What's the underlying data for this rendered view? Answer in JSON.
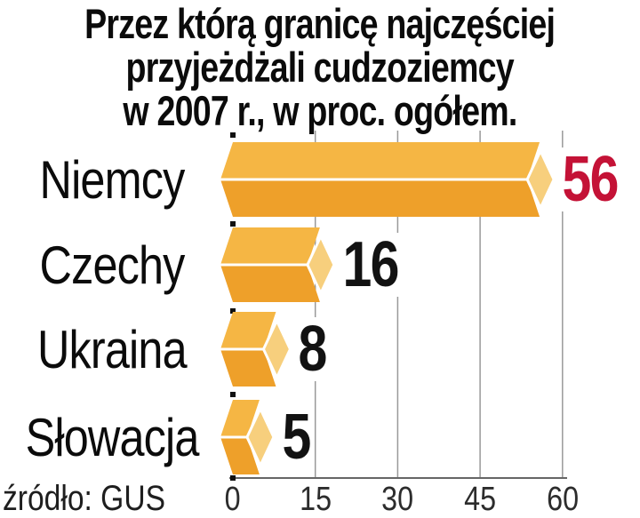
{
  "chart_data": {
    "type": "bar",
    "orientation": "horizontal",
    "title": "Przez którą granicę najczęściej przyjeżdżali cudzoziemcy w 2007 r., w proc. ogółem.",
    "title_lines": [
      "Przez którą granicę najczęściej",
      "przyjeżdżali cudzoziemcy",
      "w 2007 r., w proc. ogółem."
    ],
    "categories": [
      "Niemcy",
      "Czechy",
      "Ukraina",
      "Słowacja"
    ],
    "values": [
      56,
      16,
      8,
      5
    ],
    "value_labels": [
      "56",
      "16",
      "8",
      "5"
    ],
    "value_colors": [
      "#c41236",
      "#121212",
      "#121212",
      "#121212"
    ],
    "x_ticks": [
      0,
      15,
      30,
      45,
      60
    ],
    "xlim": [
      0,
      60
    ],
    "grid": true,
    "legend": null,
    "source_label": "źródło: GUS",
    "colors": {
      "bar_top": "#f5b644",
      "bar_front": "#eea02a",
      "bar_end_cap": "#f7cf7d",
      "gridline": "#999999",
      "axis_line": "#666666",
      "origin_tick": "#111111",
      "highlight_value": "#c41236",
      "value_text": "#121212",
      "title_text": "#0b0b0b"
    }
  }
}
